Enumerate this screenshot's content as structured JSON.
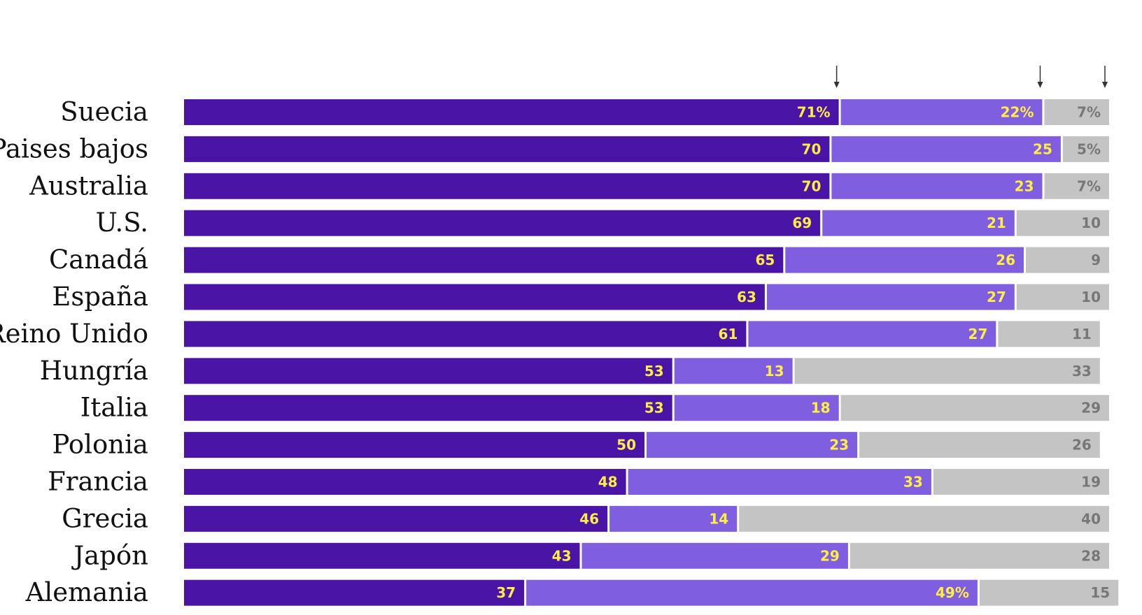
{
  "chart_data": {
    "type": "bar",
    "stacked": true,
    "orientation": "horizontal",
    "title": "",
    "xlabel": "",
    "ylabel": "",
    "legend": "none",
    "categories": [
      "Suecia",
      "Paises  bajos",
      "Australia",
      "U.S.",
      "Canadá",
      "España",
      "Reino  Unido",
      "Hungría",
      "Italia",
      "Polonia",
      "Francia",
      "Grecia",
      "Japón",
      "Alemania"
    ],
    "series": [
      {
        "values": [
          71,
          70,
          70,
          69,
          65,
          63,
          61,
          53,
          53,
          50,
          48,
          46,
          43,
          37
        ],
        "labels": [
          "71%",
          "70",
          "70",
          "69",
          "65",
          "63",
          "61",
          "53",
          "53",
          "50",
          "48",
          "46",
          "43",
          "37"
        ]
      },
      {
        "values": [
          22,
          25,
          23,
          21,
          26,
          27,
          27,
          13,
          18,
          23,
          33,
          14,
          29,
          49
        ],
        "labels": [
          "22%",
          "25",
          "23",
          "21",
          "26",
          "27",
          "27",
          "13",
          "18",
          "23",
          "33",
          "14",
          "29",
          "49%"
        ]
      },
      {
        "values": [
          7,
          5,
          7,
          10,
          9,
          10,
          11,
          33,
          29,
          26,
          19,
          40,
          28,
          15
        ],
        "labels": [
          "7%",
          "5%",
          "7%",
          "10",
          "9",
          "10",
          "11",
          "33",
          "29",
          "26",
          "19",
          "40",
          "28",
          "15"
        ]
      }
    ],
    "colors": [
      "#4a14a6",
      "#7f5fe0",
      "#c4c4c4"
    ],
    "label_colors": [
      "#ffee44",
      "#ffee44",
      "#777777"
    ],
    "xlim": [
      0,
      100
    ],
    "grid": false,
    "markers": [
      "down-arrow",
      "down-arrow",
      "down-arrow"
    ]
  }
}
